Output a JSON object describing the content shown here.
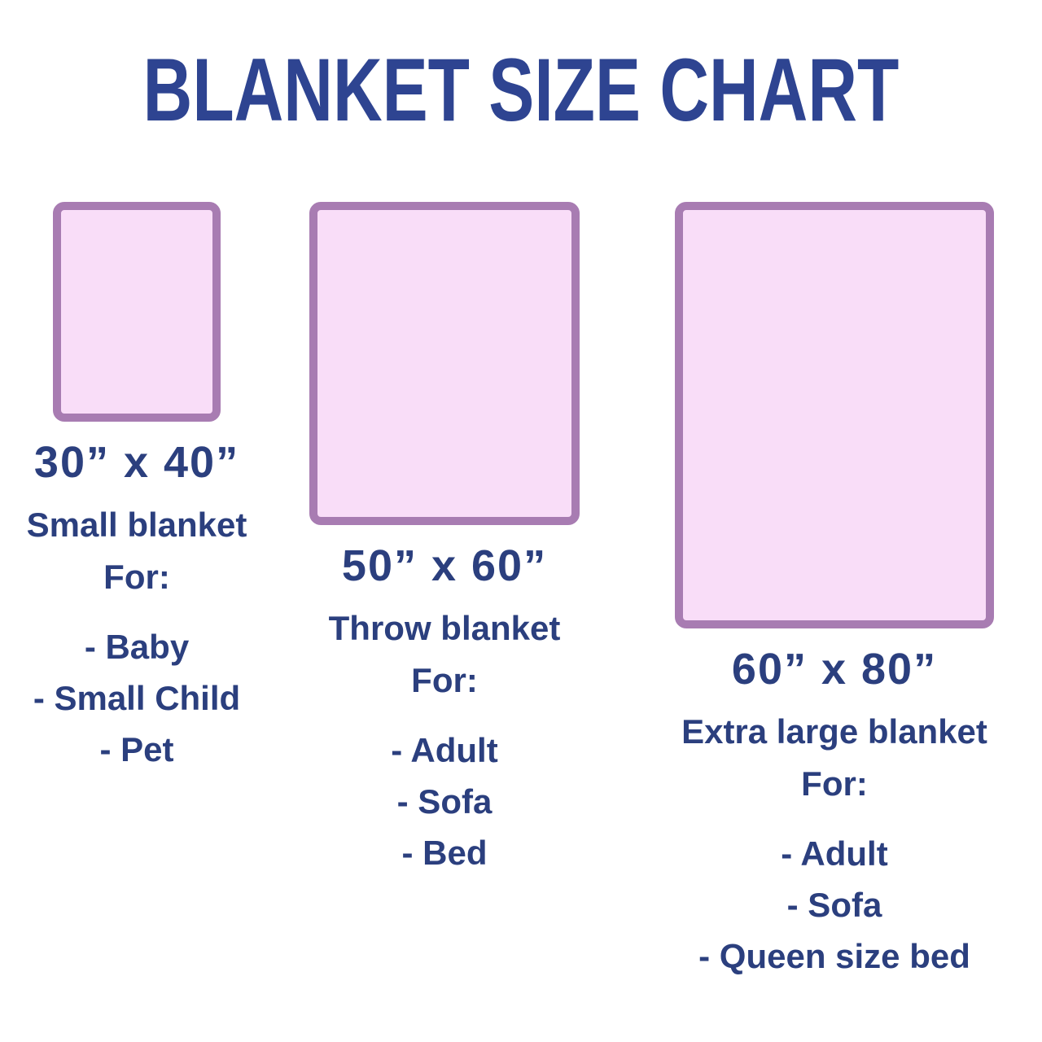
{
  "title": "BLANKET SIZE CHART",
  "colors": {
    "background": "#ffffff",
    "title_color": "#2e4491",
    "text_color": "#2b3f7e",
    "blanket_fill": "#f9ddf8",
    "blanket_border": "#a87cb2"
  },
  "blankets": [
    {
      "size": "30” x 40”",
      "name": "Small blanket",
      "for_label": "For:",
      "uses": [
        "- Baby",
        "- Small Child",
        "- Pet"
      ],
      "width_inches": 30,
      "height_inches": 40
    },
    {
      "size": "50” x 60”",
      "name": "Throw blanket",
      "for_label": "For:",
      "uses": [
        "- Adult",
        "- Sofa",
        "- Bed"
      ],
      "width_inches": 50,
      "height_inches": 60
    },
    {
      "size": "60” x 80”",
      "name": "Extra large blanket",
      "for_label": "For:",
      "uses": [
        "- Adult",
        "- Sofa",
        "- Queen size bed"
      ],
      "width_inches": 60,
      "height_inches": 80
    }
  ]
}
